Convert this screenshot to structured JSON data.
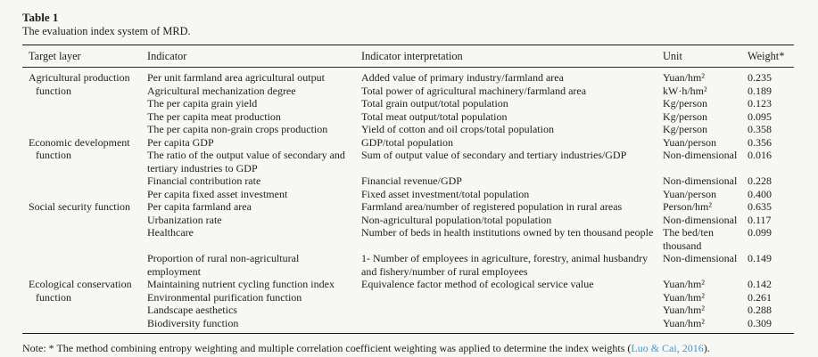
{
  "table": {
    "label": "Table 1",
    "caption": "The evaluation index system of MRD.",
    "columns": [
      "Target layer",
      "Indicator",
      "Indicator interpretation",
      "Unit",
      "Weight*"
    ],
    "groups": [
      {
        "target_layer": "Agricultural production function",
        "rows": [
          {
            "indicator": "Per unit farmland area agricultural output",
            "interpretation": "Added value of primary industry/farmland area",
            "unit": "Yuan/hm²",
            "weight": "0.235"
          },
          {
            "indicator": "Agricultural mechanization degree",
            "interpretation": "Total power of agricultural machinery/farmland area",
            "unit": "kW·h/hm²",
            "weight": "0.189"
          },
          {
            "indicator": "The per capita grain yield",
            "interpretation": "Total grain output/total population",
            "unit": "Kg/person",
            "weight": "0.123"
          },
          {
            "indicator": "The per capita meat production",
            "interpretation": "Total meat output/total population",
            "unit": "Kg/person",
            "weight": "0.095"
          },
          {
            "indicator": "The per capita non-grain crops production",
            "interpretation": "Yield of cotton and oil crops/total population",
            "unit": "Kg/person",
            "weight": "0.358"
          }
        ]
      },
      {
        "target_layer": "Economic development function",
        "rows": [
          {
            "indicator": "Per capita GDP",
            "interpretation": "GDP/total population",
            "unit": "Yuan/person",
            "weight": "0.356"
          },
          {
            "indicator": "The ratio of the output value of secondary and tertiary industries to GDP",
            "interpretation": "Sum of output value of secondary and tertiary industries/GDP",
            "unit": "Non-dimensional",
            "weight": "0.016"
          },
          {
            "indicator": "Financial contribution rate",
            "interpretation": "Financial revenue/GDP",
            "unit": "Non-dimensional",
            "weight": "0.228"
          },
          {
            "indicator": "Per capita fixed asset investment",
            "interpretation": "Fixed asset investment/total population",
            "unit": "Yuan/person",
            "weight": "0.400"
          }
        ]
      },
      {
        "target_layer": "Social security function",
        "rows": [
          {
            "indicator": "Per capita farmland area",
            "interpretation": "Farmland area/number of registered population in rural areas",
            "unit": "Person/hm²",
            "weight": "0.635"
          },
          {
            "indicator": "Urbanization rate",
            "interpretation": "Non-agricultural population/total population",
            "unit": "Non-dimensional",
            "weight": "0.117"
          },
          {
            "indicator": "Healthcare",
            "interpretation": "Number of beds in health institutions owned by ten thousand people",
            "unit": "The bed/ten thousand",
            "weight": "0.099"
          },
          {
            "indicator": "Proportion of rural non-agricultural employment",
            "interpretation": "1- Number of employees in agriculture, forestry, animal husbandry and fishery/number of rural employees",
            "unit": "Non-dimensional",
            "weight": "0.149"
          }
        ]
      },
      {
        "target_layer": "Ecological conservation function",
        "rows": [
          {
            "indicator": "Maintaining nutrient cycling function index",
            "interpretation": "Equivalence factor method of ecological service value",
            "unit": "Yuan/hm²",
            "weight": "0.142"
          },
          {
            "indicator": "Environmental purification function",
            "interpretation": "",
            "unit": "Yuan/hm²",
            "weight": "0.261"
          },
          {
            "indicator": "Landscape aesthetics",
            "interpretation": "",
            "unit": "Yuan/hm²",
            "weight": "0.288"
          },
          {
            "indicator": "Biodiversity function",
            "interpretation": "",
            "unit": "Yuan/hm²",
            "weight": "0.309"
          }
        ]
      }
    ],
    "note": {
      "prefix": "Note: * The method combining entropy weighting and multiple correlation coefficient weighting was applied to determine the index weights (",
      "citation": "Luo & Cai, 2016",
      "suffix": ")."
    },
    "colors": {
      "link": "#4199cc",
      "text": "#1d1d1d",
      "background": "#f7f7f4"
    }
  }
}
